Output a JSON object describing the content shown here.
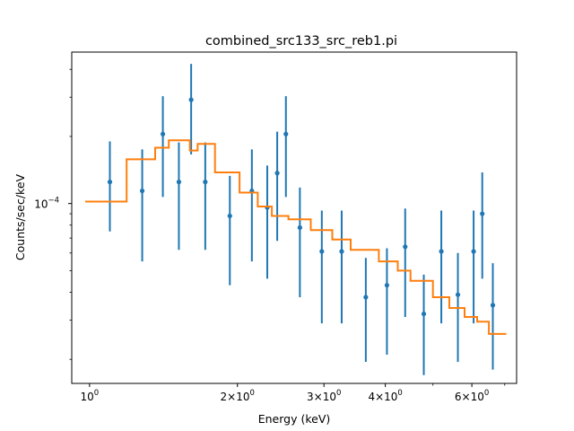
{
  "chart_data": {
    "type": "scatter",
    "title": "combined_src133_src_reb1.pi",
    "xlabel": "Energy (keV)",
    "ylabel": "Counts/sec/keV",
    "xscale": "log",
    "yscale": "log",
    "xlim": [
      0.92,
      7.4
    ],
    "ylim": [
      1.56e-05,
      0.000478
    ],
    "grid": false,
    "x_tick_labels": [
      {
        "value": 1,
        "label": "10⁰",
        "base": "10",
        "exp": "0"
      },
      {
        "value": 2,
        "label": "2×10⁰",
        "base": "2×10",
        "exp": "0"
      },
      {
        "value": 3,
        "label": "3×10⁰",
        "base": "3×10",
        "exp": "0"
      },
      {
        "value": 4,
        "label": "4×10⁰",
        "base": "4×10",
        "exp": "0"
      },
      {
        "value": 6,
        "label": "6×10⁰",
        "base": "6×10",
        "exp": "0"
      }
    ],
    "x_minor_ticks": [
      5,
      7
    ],
    "y_tick_labels": [
      {
        "value": 0.0001,
        "label": "10⁻⁴",
        "base": "10",
        "exp": "−4"
      }
    ],
    "y_minor_ticks": [
      2e-05,
      3e-05,
      4e-05,
      5e-05,
      6e-05,
      7e-05,
      8e-05,
      9e-05,
      0.0002,
      0.0003,
      0.0004
    ],
    "series": [
      {
        "kind": "errorbar",
        "color": "#1f77b4",
        "points": [
          {
            "x": 1.1,
            "y": 0.000125,
            "ylo": 7.5e-05,
            "yhi": 0.00019
          },
          {
            "x": 1.28,
            "y": 0.000114,
            "ylo": 5.5e-05,
            "yhi": 0.000175
          },
          {
            "x": 1.41,
            "y": 0.000205,
            "ylo": 0.000107,
            "yhi": 0.000303
          },
          {
            "x": 1.52,
            "y": 0.000125,
            "ylo": 6.2e-05,
            "yhi": 0.000188
          },
          {
            "x": 1.61,
            "y": 0.000292,
            "ylo": 0.000166,
            "yhi": 0.000423
          },
          {
            "x": 1.72,
            "y": 0.000125,
            "ylo": 6.2e-05,
            "yhi": 0.000188
          },
          {
            "x": 1.93,
            "y": 8.8e-05,
            "ylo": 4.3e-05,
            "yhi": 0.000133
          },
          {
            "x": 2.14,
            "y": 0.000114,
            "ylo": 5.5e-05,
            "yhi": 0.000175
          },
          {
            "x": 2.3,
            "y": 9.6e-05,
            "ylo": 4.6e-05,
            "yhi": 0.000148
          },
          {
            "x": 2.41,
            "y": 0.000137,
            "ylo": 6.8e-05,
            "yhi": 0.00021
          },
          {
            "x": 2.51,
            "y": 0.000205,
            "ylo": 0.000107,
            "yhi": 0.000303
          },
          {
            "x": 2.68,
            "y": 7.8e-05,
            "ylo": 3.8e-05,
            "yhi": 0.000118
          },
          {
            "x": 2.97,
            "y": 6.1e-05,
            "ylo": 2.9e-05,
            "yhi": 9.3e-05
          },
          {
            "x": 3.26,
            "y": 6.1e-05,
            "ylo": 2.9e-05,
            "yhi": 9.3e-05
          },
          {
            "x": 3.65,
            "y": 3.8e-05,
            "ylo": 1.95e-05,
            "yhi": 5.7e-05
          },
          {
            "x": 4.03,
            "y": 4.3e-05,
            "ylo": 2.1e-05,
            "yhi": 6.3e-05
          },
          {
            "x": 4.39,
            "y": 6.4e-05,
            "ylo": 3.1e-05,
            "yhi": 9.5e-05
          },
          {
            "x": 4.79,
            "y": 3.2e-05,
            "ylo": 1.7e-05,
            "yhi": 4.8e-05
          },
          {
            "x": 5.2,
            "y": 6.1e-05,
            "ylo": 2.9e-05,
            "yhi": 9.3e-05
          },
          {
            "x": 5.62,
            "y": 3.9e-05,
            "ylo": 1.95e-05,
            "yhi": 6e-05
          },
          {
            "x": 6.05,
            "y": 6.1e-05,
            "ylo": 2.9e-05,
            "yhi": 9.3e-05
          },
          {
            "x": 6.3,
            "y": 9e-05,
            "ylo": 4.6e-05,
            "yhi": 0.000138
          },
          {
            "x": 6.62,
            "y": 3.5e-05,
            "ylo": 1.8e-05,
            "yhi": 5.4e-05
          }
        ]
      },
      {
        "kind": "step",
        "color": "#ff7f0e",
        "steps": [
          {
            "x0": 0.98,
            "x1": 1.19,
            "y": 0.000102
          },
          {
            "x0": 1.19,
            "x1": 1.36,
            "y": 0.000158
          },
          {
            "x0": 1.36,
            "x1": 1.45,
            "y": 0.000178
          },
          {
            "x0": 1.45,
            "x1": 1.6,
            "y": 0.000192
          },
          {
            "x0": 1.6,
            "x1": 1.66,
            "y": 0.000173
          },
          {
            "x0": 1.66,
            "x1": 1.8,
            "y": 0.000185
          },
          {
            "x0": 1.8,
            "x1": 2.02,
            "y": 0.000138
          },
          {
            "x0": 2.02,
            "x1": 2.2,
            "y": 0.000112
          },
          {
            "x0": 2.2,
            "x1": 2.35,
            "y": 9.7e-05
          },
          {
            "x0": 2.35,
            "x1": 2.54,
            "y": 8.8e-05
          },
          {
            "x0": 2.54,
            "x1": 2.82,
            "y": 8.5e-05
          },
          {
            "x0": 2.82,
            "x1": 3.12,
            "y": 7.6e-05
          },
          {
            "x0": 3.12,
            "x1": 3.4,
            "y": 6.9e-05
          },
          {
            "x0": 3.4,
            "x1": 3.88,
            "y": 6.2e-05
          },
          {
            "x0": 3.88,
            "x1": 4.24,
            "y": 5.5e-05
          },
          {
            "x0": 4.24,
            "x1": 4.5,
            "y": 5e-05
          },
          {
            "x0": 4.5,
            "x1": 5.0,
            "y": 4.5e-05
          },
          {
            "x0": 5.0,
            "x1": 5.4,
            "y": 3.8e-05
          },
          {
            "x0": 5.4,
            "x1": 5.8,
            "y": 3.4e-05
          },
          {
            "x0": 5.8,
            "x1": 6.15,
            "y": 3.1e-05
          },
          {
            "x0": 6.15,
            "x1": 6.5,
            "y": 2.95e-05
          },
          {
            "x0": 6.5,
            "x1": 7.05,
            "y": 2.6e-05
          }
        ]
      }
    ]
  }
}
